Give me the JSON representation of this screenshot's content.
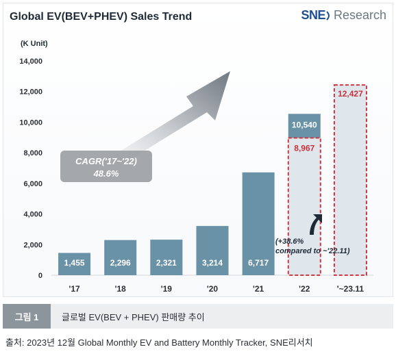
{
  "header": {
    "title": "Global EV(BEV+PHEV)  Sales Trend",
    "logo_sne": "SNE",
    "logo_research": "Research",
    "unit": "(K Unit)"
  },
  "chart_data": {
    "type": "bar",
    "categories": [
      "'17",
      "'18",
      "'19",
      "'20",
      "'21",
      "'22",
      "'~23.11"
    ],
    "values": [
      1455,
      2296,
      2321,
      3214,
      6717,
      10540,
      12427
    ],
    "value_labels": [
      "1,455",
      "2,296",
      "2,321",
      "3,214",
      "6,717",
      "10,540",
      "12,427"
    ],
    "comparison": {
      "category": "'22",
      "value": 8967,
      "label": "8,967",
      "color": "#c8323c"
    },
    "ylim": [
      0,
      14000
    ],
    "yticks": [
      0,
      2000,
      4000,
      6000,
      8000,
      10000,
      12000,
      14000
    ],
    "ytick_labels": [
      "0",
      "2,000",
      "4,000",
      "6,000",
      "8,000",
      "10,000",
      "12,000",
      "14,000"
    ],
    "bar_color": "#6a92a6",
    "dashed_color": "#d0363f",
    "highlight_value_color": "#c8323c",
    "grid": false,
    "annotations": {
      "cagr_line1": "CAGR('17~'22)",
      "cagr_line2": "48.6%",
      "growth_line1": "(+38.6%",
      "growth_line2": "compared to ~'22.11)"
    }
  },
  "caption": {
    "label": "그림 1",
    "text": "글로벌 EV(BEV + PHEV) 판매량 추이"
  },
  "source": "출처: 2023년 12월 Global Monthly EV and Battery Monthly Tracker, SNE리서치"
}
